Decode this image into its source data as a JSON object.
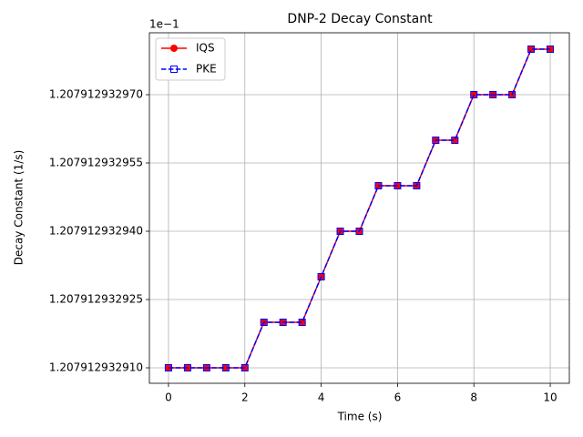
{
  "chart_data": {
    "type": "line",
    "title": "DNP-2 Decay Constant",
    "x_label": "Time (s)",
    "y_label": "Decay Constant (1/s)",
    "y_offset_label": "1e−1",
    "x": [
      0,
      0.5,
      1,
      1.5,
      2,
      2.5,
      3,
      3.5,
      4,
      4.5,
      5,
      5.5,
      6,
      6.5,
      7,
      7.5,
      8,
      8.5,
      9,
      9.5,
      10
    ],
    "series": [
      {
        "name": "IQS",
        "color": "#ff0000",
        "linestyle": "solid",
        "marker": "circle",
        "values": [
          1.20791293291,
          1.20791293291,
          1.20791293291,
          1.20791293291,
          1.20791293291,
          1.20791293292,
          1.20791293292,
          1.20791293292,
          1.20791293293,
          1.20791293294,
          1.20791293294,
          1.20791293295,
          1.20791293295,
          1.20791293295,
          1.20791293296,
          1.20791293296,
          1.20791293297,
          1.20791293297,
          1.20791293297,
          1.20791293298,
          1.20791293298
        ]
      },
      {
        "name": "PKE",
        "color": "#0000ff",
        "linestyle": "dashed",
        "marker": "square",
        "values": [
          1.20791293291,
          1.20791293291,
          1.20791293291,
          1.20791293291,
          1.20791293291,
          1.20791293292,
          1.20791293292,
          1.20791293292,
          1.20791293293,
          1.20791293294,
          1.20791293294,
          1.20791293295,
          1.20791293295,
          1.20791293295,
          1.20791293296,
          1.20791293296,
          1.20791293297,
          1.20791293297,
          1.20791293297,
          1.20791293298,
          1.20791293298
        ]
      }
    ],
    "xlim": [
      -0.5,
      10.5
    ],
    "xticks": [
      0,
      2,
      4,
      6,
      8,
      10
    ],
    "ylim": [
      1.2079129329066,
      1.2079129329836
    ],
    "yticks": [
      {
        "value": 1.20791293291,
        "label": "1.207912932910"
      },
      {
        "value": 1.207912932925,
        "label": "1.207912932925"
      },
      {
        "value": 1.20791293294,
        "label": "1.207912932940"
      },
      {
        "value": 1.207912932955,
        "label": "1.207912932955"
      },
      {
        "value": 1.20791293297,
        "label": "1.207912932970"
      }
    ],
    "grid": true,
    "legend": "upper left"
  }
}
